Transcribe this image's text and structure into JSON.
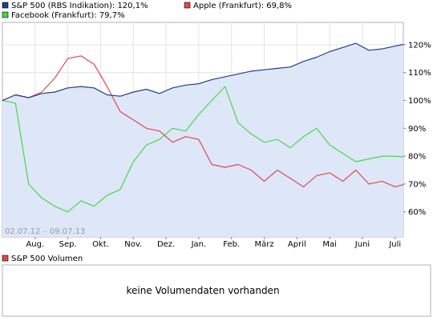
{
  "legend": [
    {
      "label": "S&P 500 (RBS Indikation): 120,1%",
      "color": "#1f3f8f"
    },
    {
      "label": "Apple (Frankfurt): 69,8%",
      "color": "#e04848"
    },
    {
      "label": "Facebook (Frankfurt): 79,7%",
      "color": "#49d649"
    }
  ],
  "volume": {
    "legend_label": "S&P 500 Volumen",
    "legend_color": "#e04848",
    "empty_text": "keine Volumendaten vorhanden"
  },
  "date_range": "02.07.12 – 09.07.13",
  "chart_data": {
    "type": "line",
    "x_unit": "month",
    "xlim": [
      0,
      12.25
    ],
    "ylim": [
      51,
      128
    ],
    "y_ticks": [
      60,
      70,
      80,
      90,
      100,
      110,
      120
    ],
    "y_tick_labels": [
      "60%",
      "70%",
      "80%",
      "90%",
      "100%",
      "110%",
      "120%"
    ],
    "x_ticks": [
      1.0,
      2.0,
      3.0,
      4.0,
      5.0,
      6.0,
      7.0,
      8.0,
      9.0,
      10.0,
      11.0,
      12.0
    ],
    "x_tick_labels": [
      "Aug.",
      "Sep.",
      "Okt.",
      "Nov.",
      "Dez.",
      "Jan.",
      "Feb.",
      "März",
      "April",
      "Mai",
      "Juni",
      "Juli"
    ],
    "grid": true,
    "legend_position": "top",
    "series": [
      {
        "name": "S&P 500 (RBS Indikation)",
        "color": "#1f3f8f",
        "fill": "#dde7f8",
        "x": [
          0,
          0.4,
          0.8,
          1.2,
          1.6,
          2.0,
          2.4,
          2.8,
          3.2,
          3.6,
          4.0,
          4.4,
          4.8,
          5.2,
          5.6,
          6.0,
          6.4,
          6.8,
          7.2,
          7.6,
          8.0,
          8.4,
          8.8,
          9.2,
          9.6,
          10.0,
          10.4,
          10.8,
          11.2,
          11.6,
          12.0,
          12.25
        ],
        "values": [
          100,
          102,
          101,
          102.5,
          103,
          104.5,
          105,
          104.5,
          102,
          101.5,
          103,
          104,
          102.5,
          104.5,
          105.5,
          106,
          107.5,
          108.5,
          109.5,
          110.5,
          111,
          111.5,
          112,
          114,
          115.5,
          117.5,
          119,
          120.5,
          118,
          118.5,
          119.5,
          120.1
        ]
      },
      {
        "name": "Apple (Frankfurt)",
        "color": "#e04848",
        "x": [
          0,
          0.4,
          0.8,
          1.2,
          1.6,
          2.0,
          2.4,
          2.8,
          3.2,
          3.6,
          4.0,
          4.4,
          4.8,
          5.2,
          5.6,
          6.0,
          6.4,
          6.8,
          7.2,
          7.6,
          8.0,
          8.4,
          8.8,
          9.2,
          9.6,
          10.0,
          10.4,
          10.8,
          11.2,
          11.6,
          12.0,
          12.25
        ],
        "values": [
          100,
          102,
          101,
          103,
          108,
          115,
          116,
          113,
          105,
          96,
          93,
          90,
          89,
          85,
          87,
          86,
          77,
          76,
          77,
          75,
          71,
          75,
          72,
          69,
          73,
          74,
          71,
          75,
          70,
          71,
          69,
          69.8
        ]
      },
      {
        "name": "Facebook (Frankfurt)",
        "color": "#49d649",
        "x": [
          0,
          0.4,
          0.8,
          1.2,
          1.6,
          2.0,
          2.4,
          2.8,
          3.2,
          3.6,
          4.0,
          4.4,
          4.8,
          5.2,
          5.6,
          6.0,
          6.4,
          6.8,
          7.2,
          7.6,
          8.0,
          8.4,
          8.8,
          9.2,
          9.6,
          10.0,
          10.4,
          10.8,
          11.2,
          11.6,
          12.0,
          12.25
        ],
        "values": [
          100,
          99,
          70,
          65,
          62,
          60,
          64,
          62,
          66,
          68,
          78,
          84,
          86,
          90,
          89,
          95,
          100,
          105,
          92,
          88,
          85,
          86,
          83,
          87,
          90,
          84,
          81,
          78,
          79,
          80,
          80,
          79.7
        ]
      }
    ]
  }
}
